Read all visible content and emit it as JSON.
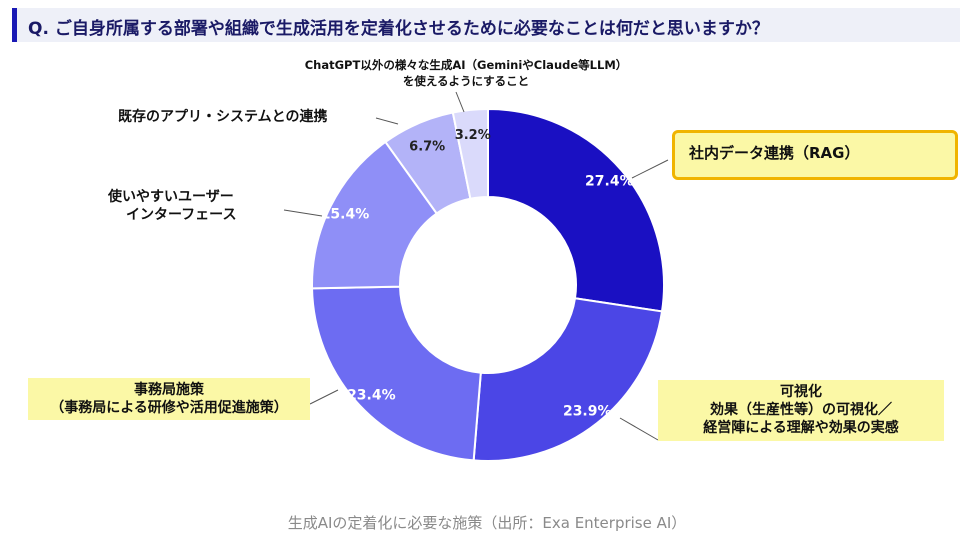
{
  "question": "Q. ご自身所属する部署や組織で生成活用を定着化させるために必要なことは何だと思いますか？",
  "caption": "生成AIの定着化に必要な施策（出所：Exa Enterprise AI）",
  "chart_data": {
    "type": "pie",
    "donut": true,
    "series": [
      {
        "label": "社内データ連携（RAG）",
        "value": 27.4,
        "display": "27.4%",
        "color": "#1a10c2",
        "highlight": true,
        "box": "gold-border"
      },
      {
        "label": [
          "可視化",
          "効果（生産性等）の可視化／",
          "経営陣による理解や効果の実感"
        ],
        "value": 23.9,
        "display": "23.9%",
        "color": "#4b46e6",
        "highlight": true
      },
      {
        "label": [
          "事務局施策",
          "（事務局による研修や活用促進施策）"
        ],
        "value": 23.4,
        "display": "23.4%",
        "color": "#6d6cf2",
        "highlight": true
      },
      {
        "label": [
          "使いやすいユーザー",
          "インターフェース"
        ],
        "value": 15.4,
        "display": "15.4%",
        "color": "#8f8ff7"
      },
      {
        "label": "既存のアプリ・システムとの連携",
        "value": 6.7,
        "display": "6.7%",
        "color": "#b3b3f8"
      },
      {
        "label": [
          "ChatGPT以外の様々な生成AI（GeminiやClaude等LLM）",
          "を使えるようにすること"
        ],
        "value": 3.2,
        "display": "3.2%",
        "color": "#dadafb"
      }
    ],
    "start": "top",
    "direction": "clockwise"
  }
}
